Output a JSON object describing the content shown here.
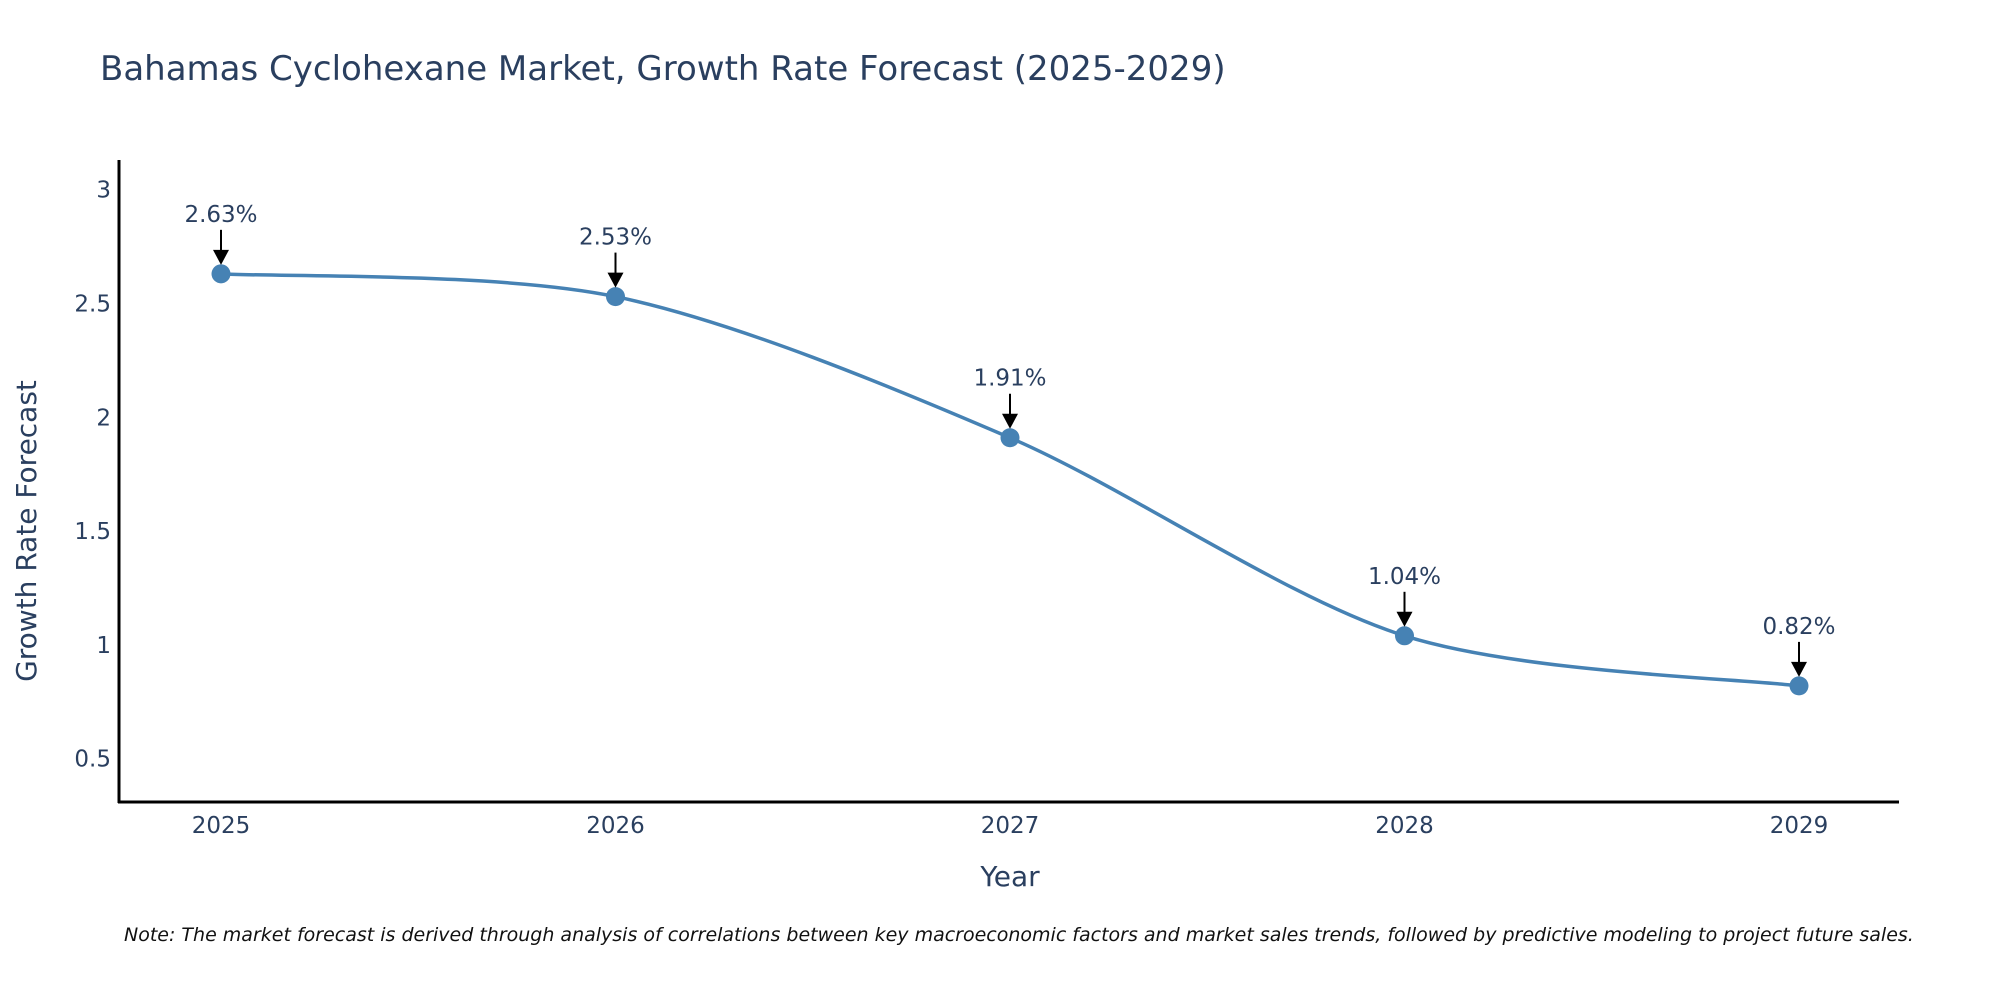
{
  "chart_data": {
    "type": "line",
    "title": "Bahamas Cyclohexane Market, Growth Rate Forecast (2025-2029)",
    "xlabel": "Year",
    "ylabel": "Growth Rate Forecast",
    "categories": [
      "2025",
      "2026",
      "2027",
      "2028",
      "2029"
    ],
    "series": [
      {
        "name": "Growth Rate Forecast",
        "values": [
          2.63,
          2.53,
          1.91,
          1.04,
          0.82
        ],
        "labels": [
          "2.63%",
          "2.53%",
          "1.91%",
          "1.04%",
          "0.82%"
        ]
      }
    ],
    "ylim": [
      0.31,
      3.13
    ],
    "yticks": [
      0.5,
      1,
      1.5,
      2,
      2.5,
      3
    ],
    "ytick_labels": [
      "0.5",
      "1",
      "1.5",
      "2",
      "2.5",
      "3"
    ],
    "grid": false,
    "line_color": "#4682b4",
    "marker_color": "#4682b4",
    "note": "Note: The market forecast is derived through analysis of correlations between key macroeconomic factors and market sales trends, followed by predictive modeling to project future sales."
  }
}
